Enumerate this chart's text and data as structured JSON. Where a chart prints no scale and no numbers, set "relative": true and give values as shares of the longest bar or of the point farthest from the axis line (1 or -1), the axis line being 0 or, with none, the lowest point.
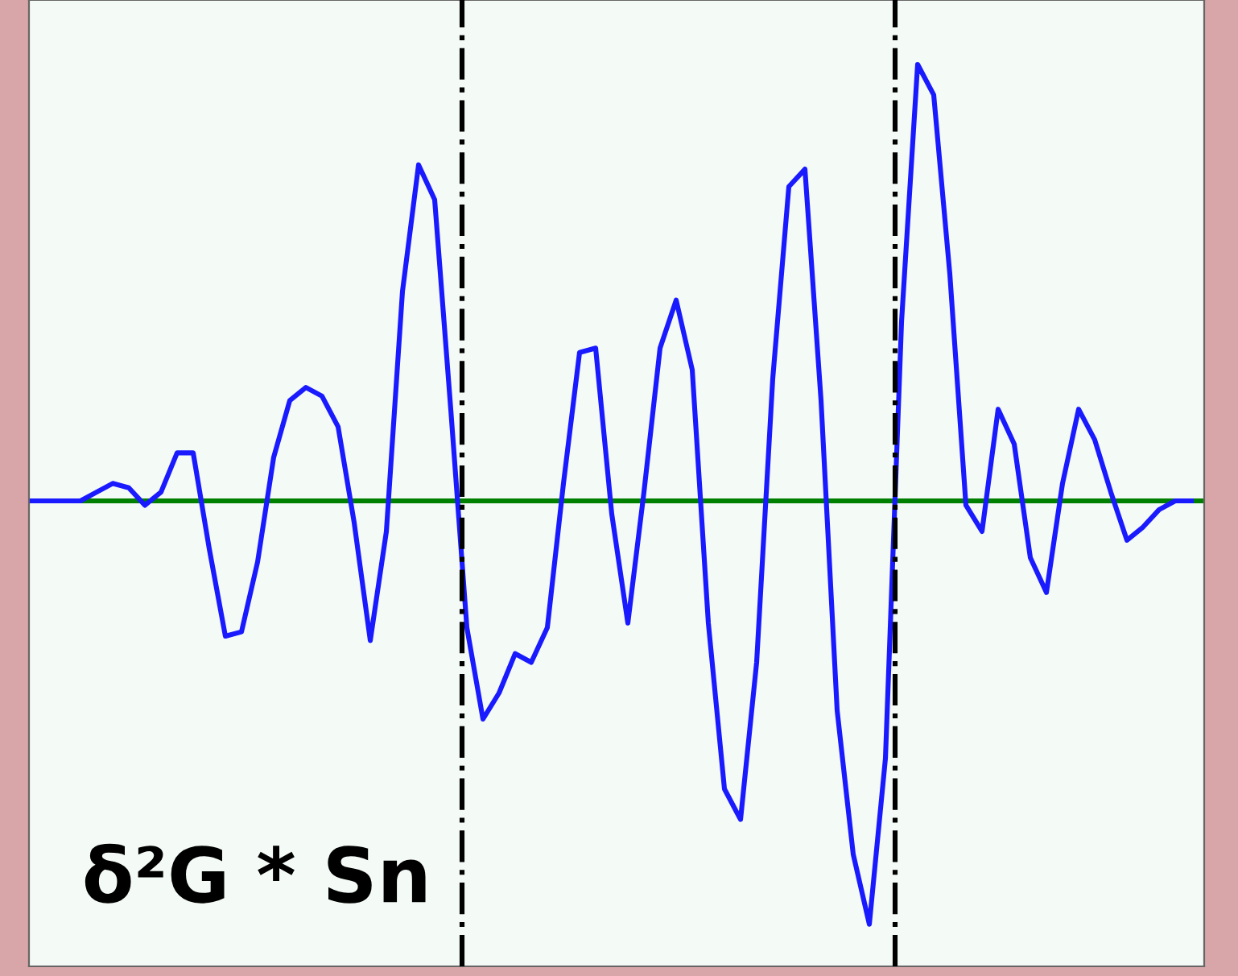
{
  "chart_data": {
    "type": "line",
    "relative": true,
    "categories": [
      null,
      null,
      null,
      null,
      null,
      null,
      null,
      null,
      null,
      null,
      null,
      null,
      null,
      null,
      null,
      null,
      null,
      null,
      null,
      null,
      null,
      null,
      null,
      null,
      null,
      null,
      null,
      null,
      null,
      null,
      null,
      null,
      null,
      null,
      null,
      null,
      null,
      null,
      null,
      null,
      null,
      null,
      null,
      null,
      null,
      null,
      null,
      null,
      null,
      null,
      null,
      null,
      null,
      null,
      null,
      null,
      null,
      null,
      null,
      null,
      null,
      null,
      null,
      null,
      null,
      null,
      null,
      null,
      null,
      null,
      null,
      null,
      null
    ],
    "series": [
      {
        "color": "#1a1aff",
        "values": [
          0,
          0,
          0,
          0.0,
          0.02,
          0.04,
          0.03,
          -0.01,
          0.02,
          0.11,
          0.11,
          -0.11,
          -0.31,
          -0.3,
          -0.14,
          0.1,
          0.23,
          0.26,
          0.24,
          0.17,
          -0.05,
          -0.32,
          -0.07,
          0.48,
          0.77,
          0.69,
          0.21,
          -0.29,
          -0.5,
          -0.44,
          -0.35,
          -0.37,
          -0.29,
          0.04,
          0.34,
          0.35,
          -0.03,
          -0.28,
          0.02,
          0.35,
          0.46,
          0.3,
          -0.28,
          -0.66,
          -0.73,
          -0.37,
          0.28,
          0.72,
          0.76,
          0.23,
          -0.48,
          -0.81,
          -0.97,
          -0.59,
          0.41,
          1,
          0.93,
          0.52,
          -0.01,
          -0.07,
          0.21,
          0.13,
          -0.13,
          -0.21,
          0.04,
          0.21,
          0.14,
          0.02,
          -0.09,
          -0.06,
          -0.02,
          0.0,
          0.0
        ]
      }
    ],
    "ref_lines": [
      {
        "axis": "y",
        "value": 0,
        "color": "#008000",
        "line_style": "solid"
      }
    ],
    "annotations": [
      "δ²G * Sn"
    ],
    "grid": false,
    "legend": false,
    "marker": "none",
    "line_style": "solid"
  }
}
